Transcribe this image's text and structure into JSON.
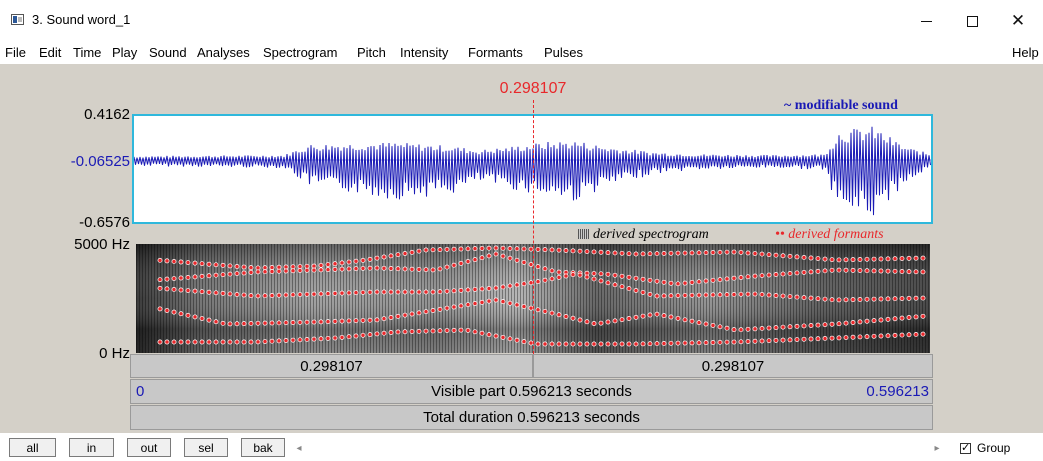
{
  "window": {
    "title": "3. Sound word_1",
    "icon": "praat-window-icon",
    "controls": {
      "minimize": "minimize-icon",
      "maximize": "maximize-icon",
      "close": "✕"
    }
  },
  "menu": [
    {
      "label": "File"
    },
    {
      "label": "Edit"
    },
    {
      "label": "Time"
    },
    {
      "label": "Play"
    },
    {
      "label": "Sound"
    },
    {
      "label": "Analyses"
    },
    {
      "label": "Spectrogram"
    },
    {
      "label": "Pitch"
    },
    {
      "label": "Intensity"
    },
    {
      "label": "Formants"
    },
    {
      "label": "Pulses"
    },
    {
      "label": "Help"
    }
  ],
  "cursor": {
    "time": "0.298107"
  },
  "waveform": {
    "title": "~ modifiable sound",
    "y_max": "0.4162",
    "y_mid": "-0.06525",
    "y_min": "-0.6576"
  },
  "spectrogram": {
    "legend_spectrogram": "derived spectrogram",
    "legend_formants": "•• derived formants",
    "y_max": "5000 Hz",
    "y_min": "0 Hz"
  },
  "selection": {
    "left_duration": "0.298107",
    "right_duration": "0.298107"
  },
  "visible": {
    "start": "0",
    "label": "Visible part 0.596213 seconds",
    "end": "0.596213"
  },
  "total": {
    "label": "Total duration 0.596213 seconds"
  },
  "toolbar": {
    "buttons": [
      {
        "label": "all"
      },
      {
        "label": "in"
      },
      {
        "label": "out"
      },
      {
        "label": "sel"
      },
      {
        "label": "bak"
      }
    ],
    "scroll_left": "◂",
    "scroll_right": "▸",
    "group_checked": "✓",
    "group_label": "Group"
  },
  "colors": {
    "waveform": "#1a1ab5",
    "waveform_border": "#2fb8dc",
    "cursor": "#e8282b",
    "formants": "#e8282b",
    "canvas_background": "#d4d0c8"
  }
}
